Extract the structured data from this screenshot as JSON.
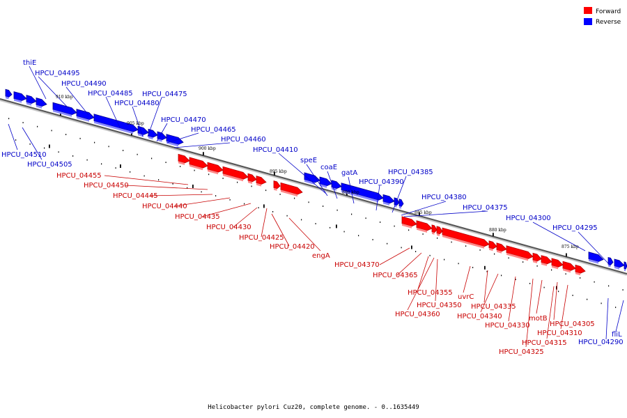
{
  "legend": {
    "forward": {
      "label": "Forward",
      "color": "#ff0000"
    },
    "reverse": {
      "label": "Reverse",
      "color": "#0000ff"
    }
  },
  "caption": "Helicobacter pylori Cuz20, complete genome. - 0..1635449",
  "ticks": [
    "910 kbp",
    "905 kbp",
    "900 kbp",
    "895 kbp",
    "890 kbp",
    "885 kbp",
    "880 kbp",
    "875 kbp"
  ],
  "reverse_labels": [
    "thiE",
    "HPCU_04495",
    "HPCU_04490",
    "HPCU_04485",
    "HPCU_04480",
    "HPCU_04475",
    "HPCU_04470",
    "HPCU_04465",
    "HPCU_04460",
    "HPCU_04410",
    "HPCU_04510",
    "HPCU_04505",
    "speE",
    "coaE",
    "gatA",
    "HPCU_04390",
    "HPCU_04385",
    "HPCU_04380",
    "HPCU_04375",
    "HPCU_04300",
    "HPCU_04295",
    "HPCU_04290",
    "fliL"
  ],
  "forward_labels": [
    "HPCU_04455",
    "HPCU_04450",
    "HPCU_04445",
    "HPCU_04440",
    "HPCU_04435",
    "HPCU_04430",
    "HPCU_04425",
    "HPCU_04420",
    "engA",
    "HPCU_04370",
    "HPCU_04365",
    "HPCU_04355",
    "HPCU_04350",
    "HPCU_04360",
    "uvrC",
    "HPCU_04335",
    "HPCU_04340",
    "HPCU_04330",
    "motB",
    "HPCU_04305",
    "HPCU_04310",
    "HPCU_04315",
    "HPCU_04325"
  ]
}
